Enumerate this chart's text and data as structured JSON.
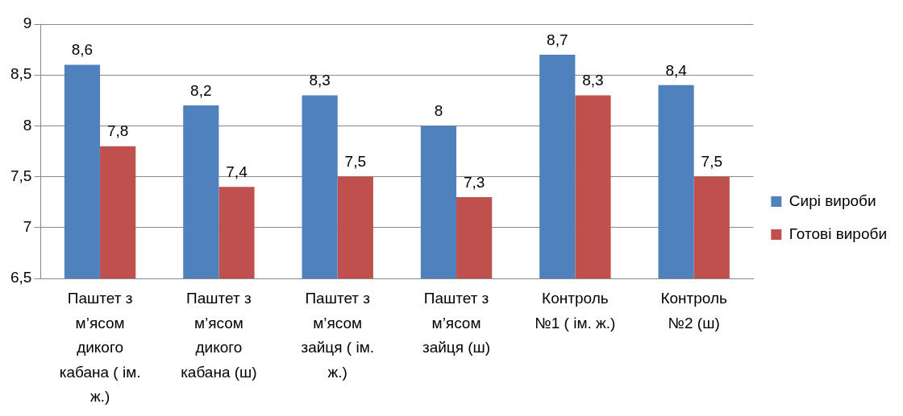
{
  "chart_data": {
    "type": "bar",
    "categories": [
      "Паштет з м’ясом дикого кабана ( ім. ж.)",
      "Паштет з м’ясом дикого кабана (ш)",
      "Паштет з м’ясом зайця ( ім. ж.)",
      "Паштет з м’ясом зайця (ш)",
      "Контроль №1 ( ім. ж.)",
      "Контроль №2 (ш)"
    ],
    "series": [
      {
        "name": "Сирі вироби",
        "color": "#4f81bd",
        "values": [
          8.6,
          8.2,
          8.3,
          8,
          8.7,
          8.4
        ],
        "value_labels": [
          "8,6",
          "8,2",
          "8,3",
          "8",
          "8,7",
          "8,4"
        ]
      },
      {
        "name": "Готові вироби",
        "color": "#c0504d",
        "values": [
          7.8,
          7.4,
          7.5,
          7.3,
          8.3,
          7.5
        ],
        "value_labels": [
          "7,8",
          "7,4",
          "7,5",
          "7,3",
          "8,3",
          "7,5"
        ]
      }
    ],
    "ylim": [
      6.5,
      9
    ],
    "yticks": [
      {
        "value": 6.5,
        "label": "6,5"
      },
      {
        "value": 7,
        "label": "7"
      },
      {
        "value": 7.5,
        "label": "7,5"
      },
      {
        "value": 8,
        "label": "8"
      },
      {
        "value": 8.5,
        "label": "8,5"
      },
      {
        "value": 9,
        "label": "9"
      }
    ],
    "grid": "y",
    "legend": "right"
  }
}
